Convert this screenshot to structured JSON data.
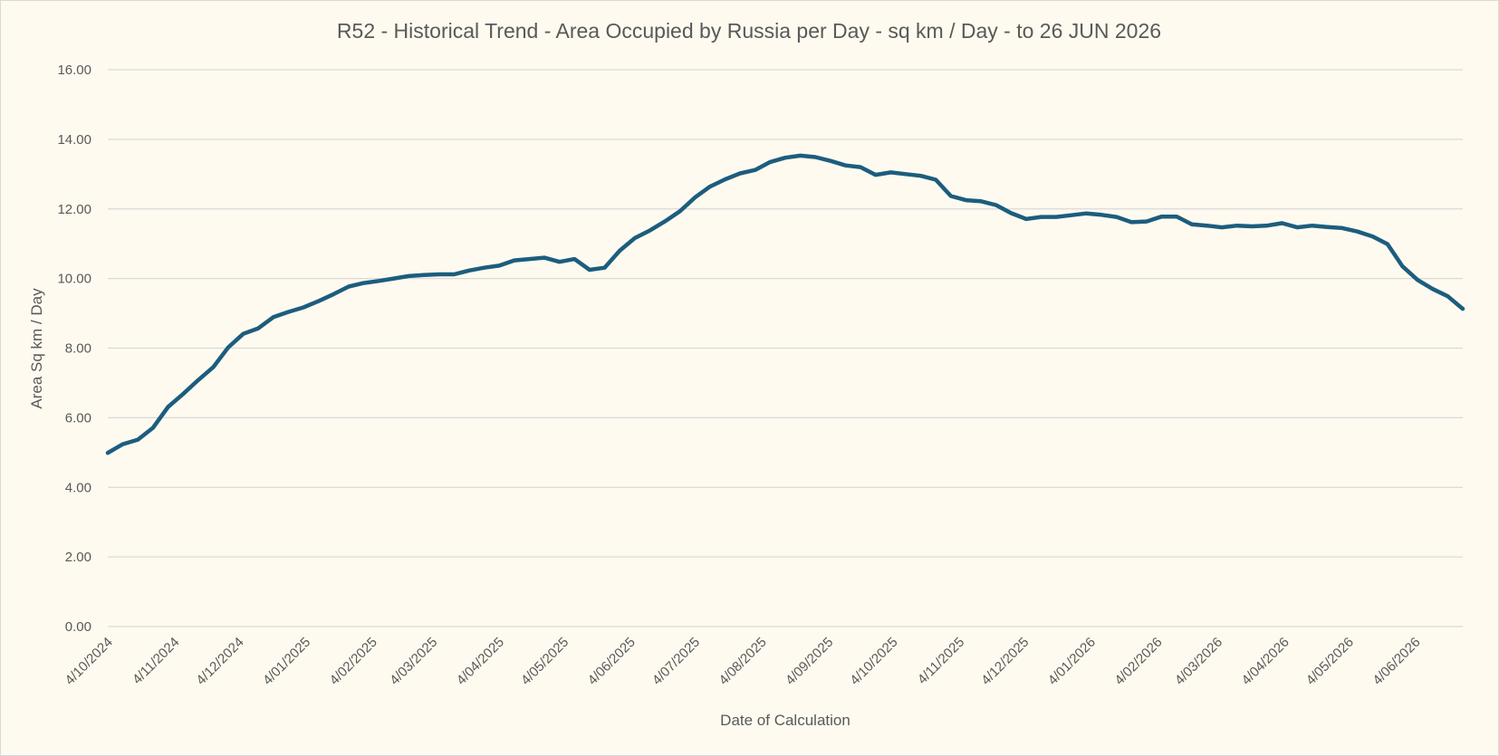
{
  "chart_data": {
    "type": "line",
    "title": "R52 - Historical Trend - Area Occupied by Russia per Day - sq km / Day - to 26 JUN 2026",
    "xlabel": "Date of Calculation",
    "ylabel": "Area Sq km / Day",
    "ylim": [
      0,
      16
    ],
    "ytick_step": 2,
    "ytick_labels": [
      "0.00",
      "2.00",
      "4.00",
      "6.00",
      "8.00",
      "10.00",
      "12.00",
      "14.00",
      "16.00"
    ],
    "xlim": [
      "2024-10-04",
      "2026-06-26"
    ],
    "x_tick_dates": [
      "2024-10-04",
      "2024-11-04",
      "2024-12-04",
      "2025-01-04",
      "2025-02-04",
      "2025-03-04",
      "2025-04-04",
      "2025-05-04",
      "2025-06-04",
      "2025-07-04",
      "2025-08-04",
      "2025-09-04",
      "2025-10-04",
      "2025-11-04",
      "2025-12-04",
      "2026-01-04",
      "2026-02-04",
      "2026-03-04",
      "2026-04-04",
      "2026-05-04",
      "2026-06-04"
    ],
    "x_tick_labels": [
      "4/10/2024",
      "4/11/2024",
      "4/12/2024",
      "4/01/2025",
      "4/02/2025",
      "4/03/2025",
      "4/04/2025",
      "4/05/2025",
      "4/06/2025",
      "4/07/2025",
      "4/08/2025",
      "4/09/2025",
      "4/10/2025",
      "4/11/2025",
      "4/12/2025",
      "4/01/2026",
      "4/02/2026",
      "4/03/2026",
      "4/04/2026",
      "4/05/2026",
      "4/06/2026"
    ],
    "grid": true,
    "legend": "none",
    "line_color": "#1c5d7e",
    "series": [
      {
        "x": [
          "2024-10-04",
          "2024-10-11",
          "2024-10-18",
          "2024-10-25",
          "2024-11-01",
          "2024-11-08",
          "2024-11-15",
          "2024-11-22",
          "2024-11-29",
          "2024-12-06",
          "2024-12-13",
          "2024-12-20",
          "2024-12-27",
          "2025-01-03",
          "2025-01-10",
          "2025-01-17",
          "2025-01-24",
          "2025-01-31",
          "2025-02-07",
          "2025-02-14",
          "2025-02-21",
          "2025-02-28",
          "2025-03-07",
          "2025-03-14",
          "2025-03-21",
          "2025-03-28",
          "2025-04-04",
          "2025-04-11",
          "2025-04-18",
          "2025-04-25",
          "2025-05-02",
          "2025-05-09",
          "2025-05-16",
          "2025-05-23",
          "2025-05-30",
          "2025-06-06",
          "2025-06-13",
          "2025-06-20",
          "2025-06-27",
          "2025-07-04",
          "2025-07-11",
          "2025-07-18",
          "2025-07-25",
          "2025-08-01",
          "2025-08-08",
          "2025-08-15",
          "2025-08-22",
          "2025-08-29",
          "2025-09-05",
          "2025-09-12",
          "2025-09-19",
          "2025-09-26",
          "2025-10-03",
          "2025-10-10",
          "2025-10-17",
          "2025-10-24",
          "2025-10-31",
          "2025-11-07",
          "2025-11-14",
          "2025-11-21",
          "2025-11-28",
          "2025-12-05",
          "2025-12-12",
          "2025-12-19",
          "2025-12-26",
          "2026-01-02",
          "2026-01-09",
          "2026-01-16",
          "2026-01-23",
          "2026-01-30",
          "2026-02-06",
          "2026-02-13",
          "2026-02-20",
          "2026-02-27",
          "2026-03-06",
          "2026-03-13",
          "2026-03-20",
          "2026-03-27",
          "2026-04-03",
          "2026-04-10",
          "2026-04-17",
          "2026-04-24",
          "2026-05-01",
          "2026-05-08",
          "2026-05-15",
          "2026-05-22",
          "2026-05-29",
          "2026-06-05",
          "2026-06-12",
          "2026-06-19",
          "2026-06-26"
        ],
        "y": [
          4.99,
          5.24,
          5.37,
          5.71,
          6.31,
          6.68,
          7.08,
          7.45,
          8.02,
          8.41,
          8.57,
          8.89,
          9.04,
          9.17,
          9.35,
          9.55,
          9.77,
          9.87,
          9.93,
          10.0,
          10.07,
          10.1,
          10.12,
          10.12,
          10.23,
          10.31,
          10.37,
          10.52,
          10.56,
          10.6,
          10.48,
          10.56,
          10.25,
          10.31,
          10.8,
          11.16,
          11.38,
          11.64,
          11.93,
          12.33,
          12.64,
          12.85,
          13.02,
          13.12,
          13.35,
          13.47,
          13.53,
          13.49,
          13.38,
          13.25,
          13.2,
          12.98,
          13.05,
          13.0,
          12.95,
          12.84,
          12.37,
          12.25,
          12.22,
          12.11,
          11.88,
          11.71,
          11.77,
          11.77,
          11.82,
          11.87,
          11.83,
          11.77,
          11.62,
          11.64,
          11.78,
          11.78,
          11.56,
          11.52,
          11.47,
          11.52,
          11.5,
          11.52,
          11.59,
          11.47,
          11.52,
          11.48,
          11.45,
          11.35,
          11.21,
          10.99,
          10.35,
          9.96,
          9.7,
          9.49,
          9.13
        ]
      }
    ]
  }
}
